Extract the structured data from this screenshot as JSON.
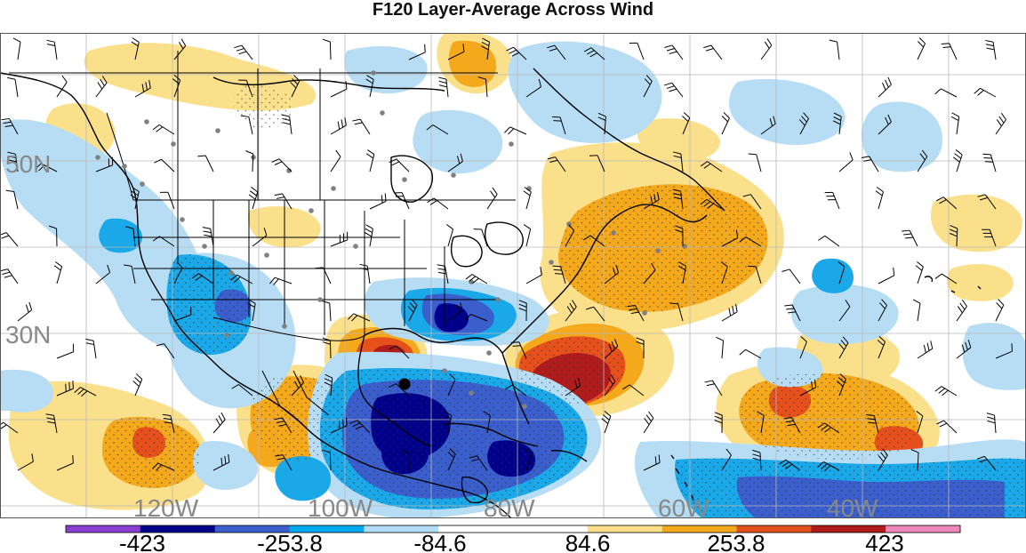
{
  "title": "F120 Layer-Average Across Wind",
  "latitude_labels": [
    "50N",
    "30N"
  ],
  "longitude_labels": [
    "120W",
    "100W",
    "80W",
    "60W",
    "40W"
  ],
  "colorbar": {
    "labels": [
      "-423",
      "-253.8",
      "-84.6",
      "84.6",
      "253.8",
      "423"
    ],
    "colors": [
      "#8a3fd0",
      "#00008b",
      "#3a5fcd",
      "#00aaee",
      "#b0dcf5",
      "#ffffff",
      "#ffffff",
      "#fbe08c",
      "#f4a81c",
      "#e6501c",
      "#b01c1c",
      "#ee88bb"
    ]
  },
  "palette": {
    "dark_blue": "#00008b",
    "mid_blue": "#3a5fcd",
    "cyan": "#1aa8e8",
    "light_blue": "#b7ddf5",
    "light_yellow": "#fbe08c",
    "orange": "#f4a81c",
    "red_orange": "#e6501c",
    "dark_red": "#b01c1c",
    "grid": "#b0b0b0",
    "coast": "#000000"
  }
}
